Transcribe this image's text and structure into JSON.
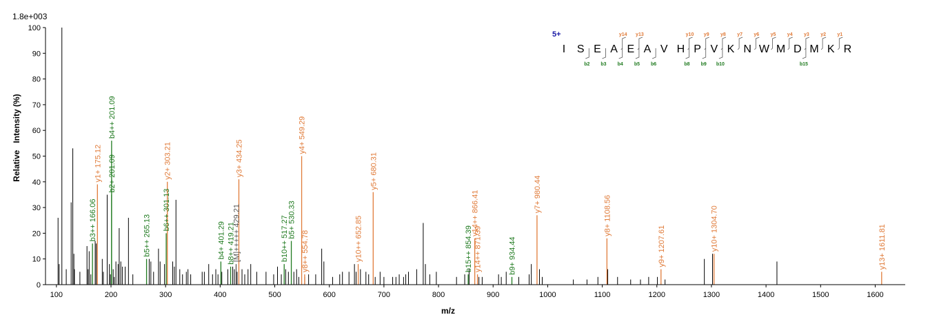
{
  "chart_data": {
    "type": "bar",
    "scale_label": "1.8e+003",
    "xlabel": "m/z",
    "ylabel": "Relative   Intensity (%)",
    "xlim": [
      80,
      1655
    ],
    "ylim": [
      0,
      100
    ],
    "x_ticks": [
      100,
      200,
      300,
      400,
      500,
      600,
      700,
      800,
      900,
      1000,
      1100,
      1200,
      1300,
      1400,
      1500,
      1600
    ],
    "y_ticks": [
      0,
      10,
      20,
      30,
      40,
      50,
      60,
      70,
      80,
      90,
      100
    ],
    "colors": {
      "b_ion": "#1f7a1f",
      "y_ion": "#e07b39",
      "neutral": "#555555",
      "charge": "#1a1aa6",
      "background_peak": "#000000"
    },
    "peptide": {
      "charge_label": "5+",
      "sequence": [
        "I",
        "S",
        "E",
        "A",
        "E",
        "A",
        "V",
        "H",
        "P",
        "V",
        "K",
        "N",
        "W",
        "M",
        "D",
        "M",
        "K",
        "R"
      ],
      "y_ions": [
        {
          "label": "y14",
          "after": 4
        },
        {
          "label": "y13",
          "after": 5
        },
        {
          "label": "y10",
          "after": 8
        },
        {
          "label": "y9",
          "after": 9
        },
        {
          "label": "y8",
          "after": 10
        },
        {
          "label": "y7",
          "after": 11
        },
        {
          "label": "y6",
          "after": 12
        },
        {
          "label": "y5",
          "after": 13
        },
        {
          "label": "y4",
          "after": 14
        },
        {
          "label": "y3",
          "after": 15
        },
        {
          "label": "y2",
          "after": 16
        },
        {
          "label": "y1",
          "after": 17
        }
      ],
      "b_ions": [
        {
          "label": "b2",
          "after": 2
        },
        {
          "label": "b3",
          "after": 3
        },
        {
          "label": "b4",
          "after": 4
        },
        {
          "label": "b5",
          "after": 5
        },
        {
          "label": "b6",
          "after": 6
        },
        {
          "label": "b8",
          "after": 8
        },
        {
          "label": "b9",
          "after": 9
        },
        {
          "label": "b10",
          "after": 10
        },
        {
          "label": "b15",
          "after": 15
        }
      ]
    },
    "labeled_peaks": [
      {
        "mz": 166.06,
        "intensity": 16,
        "label": "b3++ 166.06",
        "ion": "b"
      },
      {
        "mz": 175.12,
        "intensity": 39,
        "label": "y1+ 175.12",
        "ion": "y"
      },
      {
        "mz": 201.09,
        "intensity": 35,
        "label": "b2+ 201.09",
        "ion": "b"
      },
      {
        "mz": 201.09,
        "intensity": 56,
        "label": "b4++ 201.09",
        "ion": "b"
      },
      {
        "mz": 265.13,
        "intensity": 10,
        "label": "b5++ 265.13",
        "ion": "b"
      },
      {
        "mz": 301.13,
        "intensity": 20,
        "label": "b6++ 301.13",
        "ion": "b"
      },
      {
        "mz": 303.21,
        "intensity": 40,
        "label": "y2+ 303.21",
        "ion": "y"
      },
      {
        "mz": 401.29,
        "intensity": 9,
        "label": "b4+ 401.29",
        "ion": "b"
      },
      {
        "mz": 419.21,
        "intensity": 7,
        "label": "b8++ 419.21",
        "ion": "b"
      },
      {
        "mz": 429.21,
        "intensity": 8,
        "label": "[M]+++++ 429.21",
        "ion": "neutral"
      },
      {
        "mz": 434.25,
        "intensity": 41,
        "label": "y3+ 434.25",
        "ion": "y"
      },
      {
        "mz": 517.27,
        "intensity": 8,
        "label": "b10++ 517.27",
        "ion": "b"
      },
      {
        "mz": 530.33,
        "intensity": 17,
        "label": "b5+ 530.33",
        "ion": "b"
      },
      {
        "mz": 549.29,
        "intensity": 50,
        "label": "y4+ 549.29",
        "ion": "y"
      },
      {
        "mz": 554.78,
        "intensity": 4,
        "label": "y8++ 554.78",
        "ion": "y"
      },
      {
        "mz": 652.85,
        "intensity": 8,
        "label": "y10++ 652.85",
        "ion": "y"
      },
      {
        "mz": 680.31,
        "intensity": 36,
        "label": "y5+ 680.31",
        "ion": "y"
      },
      {
        "mz": 854.39,
        "intensity": 4,
        "label": "b15++ 854.39",
        "ion": "b"
      },
      {
        "mz": 866.41,
        "intensity": 18,
        "label": "y14++ 866.41",
        "ion": "y"
      },
      {
        "mz": 871.39,
        "intensity": 4,
        "label": "y14++ 871.39",
        "ion": "y"
      },
      {
        "mz": 934.44,
        "intensity": 3,
        "label": "b9+ 934.44",
        "ion": "b"
      },
      {
        "mz": 980.44,
        "intensity": 27,
        "label": "y7+ 980.44",
        "ion": "y"
      },
      {
        "mz": 1108.56,
        "intensity": 18,
        "label": "y8+ 1108.56",
        "ion": "y"
      },
      {
        "mz": 1207.61,
        "intensity": 6,
        "label": "y9+ 1207.61",
        "ion": "y"
      },
      {
        "mz": 1304.7,
        "intensity": 12,
        "label": "y10+ 1304.70",
        "ion": "y"
      },
      {
        "mz": 1611.81,
        "intensity": 5,
        "label": "y13+ 1611.81",
        "ion": "y"
      }
    ],
    "background_peaks": [
      [
        103,
        26
      ],
      [
        105,
        8
      ],
      [
        110,
        100
      ],
      [
        118,
        6
      ],
      [
        127,
        32
      ],
      [
        130,
        53
      ],
      [
        132,
        12
      ],
      [
        133,
        6
      ],
      [
        143,
        5
      ],
      [
        156,
        15
      ],
      [
        158,
        6
      ],
      [
        160,
        13
      ],
      [
        163,
        4
      ],
      [
        171,
        17
      ],
      [
        173,
        16
      ],
      [
        184,
        10
      ],
      [
        186,
        5
      ],
      [
        193,
        35
      ],
      [
        197,
        8
      ],
      [
        199,
        4
      ],
      [
        204,
        6
      ],
      [
        206,
        3
      ],
      [
        209,
        9
      ],
      [
        213,
        8
      ],
      [
        215,
        22
      ],
      [
        218,
        9
      ],
      [
        221,
        7
      ],
      [
        226,
        7
      ],
      [
        232,
        26
      ],
      [
        240,
        4
      ],
      [
        270,
        10
      ],
      [
        273,
        9
      ],
      [
        278,
        5
      ],
      [
        287,
        14
      ],
      [
        290,
        9
      ],
      [
        298,
        8
      ],
      [
        313,
        9
      ],
      [
        316,
        7
      ],
      [
        319,
        33
      ],
      [
        326,
        6
      ],
      [
        331,
        4
      ],
      [
        338,
        5
      ],
      [
        341,
        6
      ],
      [
        346,
        4
      ],
      [
        367,
        5
      ],
      [
        371,
        5
      ],
      [
        379,
        8
      ],
      [
        386,
        4
      ],
      [
        392,
        6
      ],
      [
        396,
        4
      ],
      [
        403,
        5
      ],
      [
        414,
        6
      ],
      [
        423,
        7
      ],
      [
        426,
        6
      ],
      [
        431,
        5
      ],
      [
        440,
        6
      ],
      [
        445,
        4
      ],
      [
        451,
        6
      ],
      [
        456,
        8
      ],
      [
        467,
        5
      ],
      [
        484,
        5
      ],
      [
        498,
        4
      ],
      [
        505,
        7
      ],
      [
        512,
        4
      ],
      [
        520,
        6
      ],
      [
        525,
        5
      ],
      [
        535,
        5
      ],
      [
        540,
        6
      ],
      [
        544,
        3
      ],
      [
        555,
        3
      ],
      [
        562,
        4
      ],
      [
        575,
        4
      ],
      [
        586,
        14
      ],
      [
        590,
        9
      ],
      [
        606,
        3
      ],
      [
        619,
        4
      ],
      [
        624,
        5
      ],
      [
        636,
        5
      ],
      [
        646,
        8
      ],
      [
        649,
        5
      ],
      [
        657,
        6
      ],
      [
        667,
        5
      ],
      [
        672,
        4
      ],
      [
        684,
        3
      ],
      [
        693,
        5
      ],
      [
        700,
        3
      ],
      [
        716,
        3
      ],
      [
        722,
        3
      ],
      [
        728,
        4
      ],
      [
        736,
        3
      ],
      [
        740,
        4
      ],
      [
        745,
        5
      ],
      [
        760,
        6
      ],
      [
        772,
        24
      ],
      [
        776,
        8
      ],
      [
        784,
        4
      ],
      [
        796,
        5
      ],
      [
        833,
        3
      ],
      [
        848,
        4
      ],
      [
        856,
        6
      ],
      [
        874,
        3
      ],
      [
        880,
        3
      ],
      [
        910,
        4
      ],
      [
        915,
        3
      ],
      [
        924,
        5
      ],
      [
        947,
        3
      ],
      [
        966,
        4
      ],
      [
        970,
        8
      ],
      [
        985,
        6
      ],
      [
        990,
        3
      ],
      [
        1047,
        2
      ],
      [
        1072,
        2
      ],
      [
        1092,
        3
      ],
      [
        1110,
        6
      ],
      [
        1128,
        3
      ],
      [
        1152,
        2
      ],
      [
        1170,
        2
      ],
      [
        1185,
        3
      ],
      [
        1201,
        3
      ],
      [
        1215,
        2
      ],
      [
        1287,
        10
      ],
      [
        1302,
        12
      ],
      [
        1420,
        9
      ]
    ]
  }
}
